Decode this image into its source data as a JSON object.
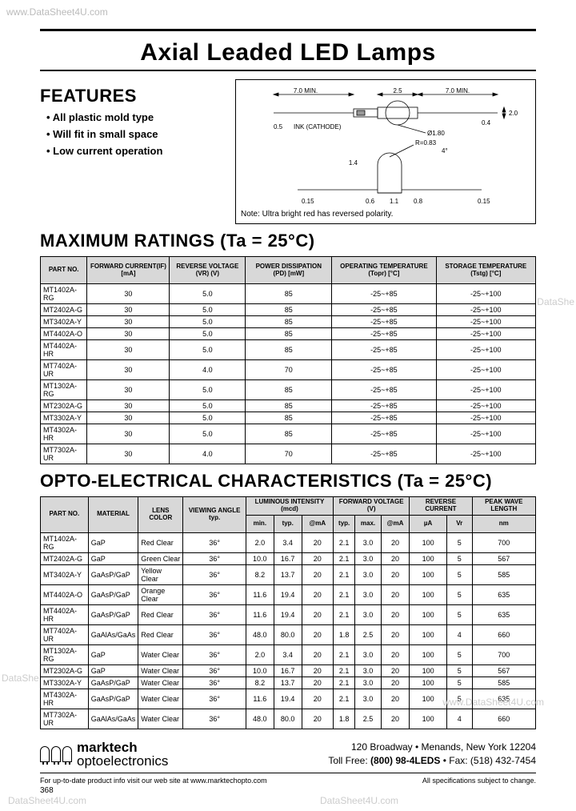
{
  "watermarks": {
    "top": "www.DataSheet4U.com",
    "right1": "DataShe",
    "left1": "DataShe",
    "bot1": "DataSheet4U.com",
    "bot2": "DataSheet4U.com",
    "bot3": "www.DataSheet4U.com"
  },
  "title": "Axial Leaded LED Lamps",
  "features": {
    "heading": "FEATURES",
    "items": [
      "All plastic mold type",
      "Will fit in small space",
      "Low current operation"
    ]
  },
  "diagram": {
    "labels": {
      "d70a": "7.0 MIN.",
      "d25": "2.5",
      "d70b": "7.0 MIN.",
      "d05": "0.5",
      "ink": "INK",
      "cathode": "(CATHODE)",
      "d180": "Ø1.80",
      "d04": "0.4",
      "d20": "2.0",
      "r083": "R=0.83",
      "ang4": "4°",
      "d14": "1.4",
      "d06": "0.6",
      "d08": "0.8",
      "d015a": "0.15",
      "d015b": "0.15",
      "d11": "1.1"
    },
    "note": "Note: Ultra bright red has reversed polarity."
  },
  "ratings": {
    "heading": "MAXIMUM RATINGS (Ta = 25°C)",
    "columns": [
      "PART NO.",
      "FORWARD CURRENT(IF) [mA]",
      "REVERSE VOLTAGE (VR) (V)",
      "POWER DISSIPATION (PD) [mW]",
      "OPERATING TEMPERATURE (Topr) [°C]",
      "STORAGE TEMPERATURE (Tstg) [°C]"
    ],
    "rows": [
      [
        "MT1402A-RG",
        "30",
        "5.0",
        "85",
        "-25~+85",
        "-25~+100"
      ],
      [
        "MT2402A-G",
        "30",
        "5.0",
        "85",
        "-25~+85",
        "-25~+100"
      ],
      [
        "MT3402A-Y",
        "30",
        "5.0",
        "85",
        "-25~+85",
        "-25~+100"
      ],
      [
        "MT4402A-O",
        "30",
        "5.0",
        "85",
        "-25~+85",
        "-25~+100"
      ],
      [
        "MT4402A-HR",
        "30",
        "5.0",
        "85",
        "-25~+85",
        "-25~+100"
      ],
      [
        "MT7402A-UR",
        "30",
        "4.0",
        "70",
        "-25~+85",
        "-25~+100"
      ],
      [
        "MT1302A-RG",
        "30",
        "5.0",
        "85",
        "-25~+85",
        "-25~+100"
      ],
      [
        "MT2302A-G",
        "30",
        "5.0",
        "85",
        "-25~+85",
        "-25~+100"
      ],
      [
        "MT3302A-Y",
        "30",
        "5.0",
        "85",
        "-25~+85",
        "-25~+100"
      ],
      [
        "MT4302A-HR",
        "30",
        "5.0",
        "85",
        "-25~+85",
        "-25~+100"
      ],
      [
        "MT7302A-UR",
        "30",
        "4.0",
        "70",
        "-25~+85",
        "-25~+100"
      ]
    ]
  },
  "opto": {
    "heading": "OPTO-ELECTRICAL CHARACTERISTICS (Ta = 25°C)",
    "header1": [
      "PART NO.",
      "MATERIAL",
      "LENS COLOR",
      "VIEWING ANGLE typ.",
      "LUMINOUS INTENSITY (mcd)",
      "FORWARD VOLTAGE (V)",
      "REVERSE CURRENT",
      "PEAK WAVE LENGTH"
    ],
    "header2": [
      "min.",
      "typ.",
      "@mA",
      "typ.",
      "max.",
      "@mA",
      "µA",
      "Vr",
      "nm"
    ],
    "rows": [
      [
        "MT1402A-RG",
        "GaP",
        "Red Clear",
        "36°",
        "2.0",
        "3.4",
        "20",
        "2.1",
        "3.0",
        "20",
        "100",
        "5",
        "700"
      ],
      [
        "MT2402A-G",
        "GaP",
        "Green Clear",
        "36°",
        "10.0",
        "16.7",
        "20",
        "2.1",
        "3.0",
        "20",
        "100",
        "5",
        "567"
      ],
      [
        "MT3402A-Y",
        "GaAsP/GaP",
        "Yellow Clear",
        "36°",
        "8.2",
        "13.7",
        "20",
        "2.1",
        "3.0",
        "20",
        "100",
        "5",
        "585"
      ],
      [
        "MT4402A-O",
        "GaAsP/GaP",
        "Orange Clear",
        "36°",
        "11.6",
        "19.4",
        "20",
        "2.1",
        "3.0",
        "20",
        "100",
        "5",
        "635"
      ],
      [
        "MT4402A-HR",
        "GaAsP/GaP",
        "Red Clear",
        "36°",
        "11.6",
        "19.4",
        "20",
        "2.1",
        "3.0",
        "20",
        "100",
        "5",
        "635"
      ],
      [
        "MT7402A-UR",
        "GaAlAs/GaAs",
        "Red Clear",
        "36°",
        "48.0",
        "80.0",
        "20",
        "1.8",
        "2.5",
        "20",
        "100",
        "4",
        "660"
      ],
      [
        "MT1302A-RG",
        "GaP",
        "Water Clear",
        "36°",
        "2.0",
        "3.4",
        "20",
        "2.1",
        "3.0",
        "20",
        "100",
        "5",
        "700"
      ],
      [
        "MT2302A-G",
        "GaP",
        "Water Clear",
        "36°",
        "10.0",
        "16.7",
        "20",
        "2.1",
        "3.0",
        "20",
        "100",
        "5",
        "567"
      ],
      [
        "MT3302A-Y",
        "GaAsP/GaP",
        "Water Clear",
        "36°",
        "8.2",
        "13.7",
        "20",
        "2.1",
        "3.0",
        "20",
        "100",
        "5",
        "585"
      ],
      [
        "MT4302A-HR",
        "GaAsP/GaP",
        "Water Clear",
        "36°",
        "11.6",
        "19.4",
        "20",
        "2.1",
        "3.0",
        "20",
        "100",
        "5",
        "635"
      ],
      [
        "MT7302A-UR",
        "GaAlAs/GaAs",
        "Water Clear",
        "36°",
        "48.0",
        "80.0",
        "20",
        "1.8",
        "2.5",
        "20",
        "100",
        "4",
        "660"
      ]
    ]
  },
  "footer": {
    "brand1": "marktech",
    "brand2": "optoelectronics",
    "addr1": "120 Broadway • Menands, New York 12204",
    "addr2a": "Toll Free: ",
    "addr2b": "(800) 98-4LEDS",
    "addr2c": " • Fax: (518) 432-7454",
    "note_left": "For up-to-date product info visit our web site at www.marktechopto.com",
    "note_right": "All specifications subject to change.",
    "page": "368"
  }
}
